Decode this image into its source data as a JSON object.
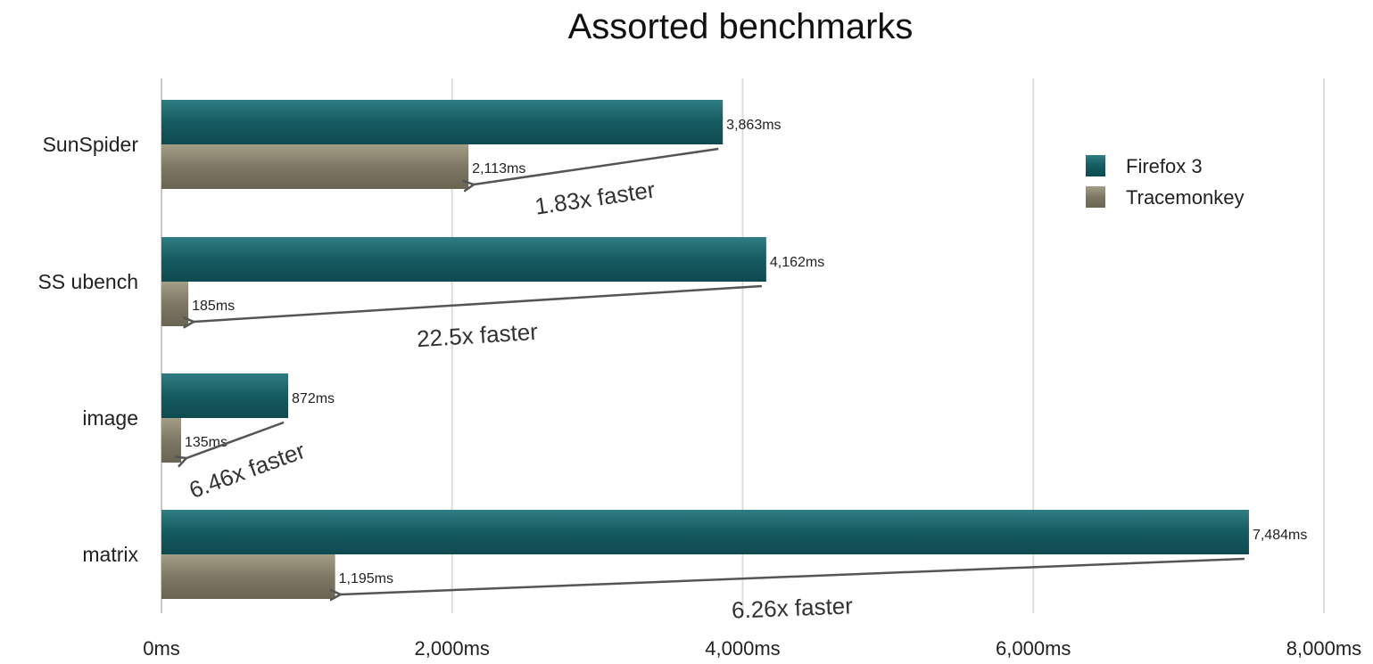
{
  "chart_data": {
    "type": "bar",
    "orientation": "horizontal",
    "title": "Assorted benchmarks",
    "categories": [
      "SunSpider",
      "SS ubench",
      "image",
      "matrix"
    ],
    "series": [
      {
        "name": "Firefox 3",
        "color": "#155b61",
        "values": [
          3863,
          4162,
          872,
          7484
        ],
        "labels": [
          "3,863ms",
          "4,162ms",
          "872ms",
          "7,484ms"
        ]
      },
      {
        "name": "Tracemonkey",
        "color": "#7d7764",
        "values": [
          2113,
          185,
          135,
          1195
        ],
        "labels": [
          "2,113ms",
          "185ms",
          "135ms",
          "1,195ms"
        ]
      }
    ],
    "annotations": [
      "1.83x faster",
      "22.5x faster",
      "6.46x faster",
      "6.26x faster"
    ],
    "xlim": [
      0,
      8000
    ],
    "xticks": [
      0,
      2000,
      4000,
      6000,
      8000
    ],
    "xtick_labels": [
      "0ms",
      "2,000ms",
      "4,000ms",
      "6,000ms",
      "8,000ms"
    ],
    "grid": true,
    "legend_position": "top-right"
  }
}
